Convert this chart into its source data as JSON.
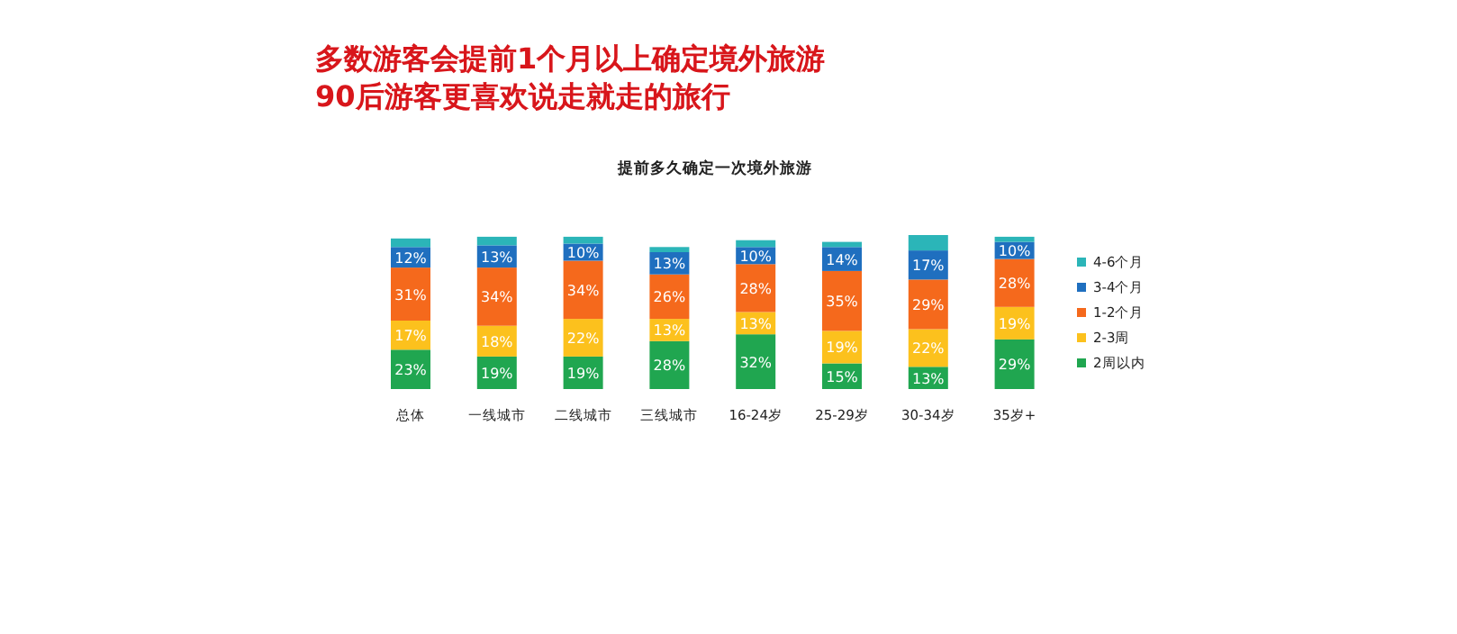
{
  "chart_data": {
    "type": "bar",
    "title": "多数游客会提前1个月以上确定境外旅游",
    "subtitle": "90后游客更喜欢说走就走的旅行",
    "annotations": [
      "提前多久确定一次境外旅游"
    ],
    "categories": [
      "总体",
      "一线城市",
      "二线城市",
      "三线城市",
      "16-24岁",
      "25-29岁",
      "30-34岁",
      "35岁+"
    ],
    "stacked": true,
    "legend": "right",
    "series": [
      {
        "name": "2周以内",
        "color": "#20a650",
        "values": [
          23,
          19,
          19,
          28,
          32,
          15,
          13,
          29
        ],
        "value_labels": [
          "23%",
          "19%",
          "19%",
          "28%",
          "32%",
          "15%",
          "13%",
          "29%"
        ]
      },
      {
        "name": "2-3周",
        "color": "#fcc11d",
        "values": [
          17,
          18,
          22,
          13,
          13,
          19,
          22,
          19
        ],
        "value_labels": [
          "17%",
          "18%",
          "22%",
          "13%",
          "13%",
          "19%",
          "22%",
          "19%"
        ]
      },
      {
        "name": "1-2个月",
        "color": "#f5691c",
        "values": [
          31,
          34,
          34,
          26,
          28,
          35,
          29,
          28
        ],
        "value_labels": [
          "31%",
          "34%",
          "34%",
          "26%",
          "28%",
          "35%",
          "29%",
          "28%"
        ]
      },
      {
        "name": "3-4个月",
        "color": "#1f6fbf",
        "values": [
          12,
          13,
          10,
          13,
          10,
          14,
          17,
          10
        ],
        "value_labels": [
          "12%",
          "13%",
          "10%",
          "13%",
          "10%",
          "14%",
          "17%",
          "10%"
        ]
      },
      {
        "name": "4-6个月",
        "color": "#2bb5b8",
        "values": [
          5,
          5,
          4,
          3,
          4,
          3,
          9,
          3
        ]
      }
    ]
  }
}
